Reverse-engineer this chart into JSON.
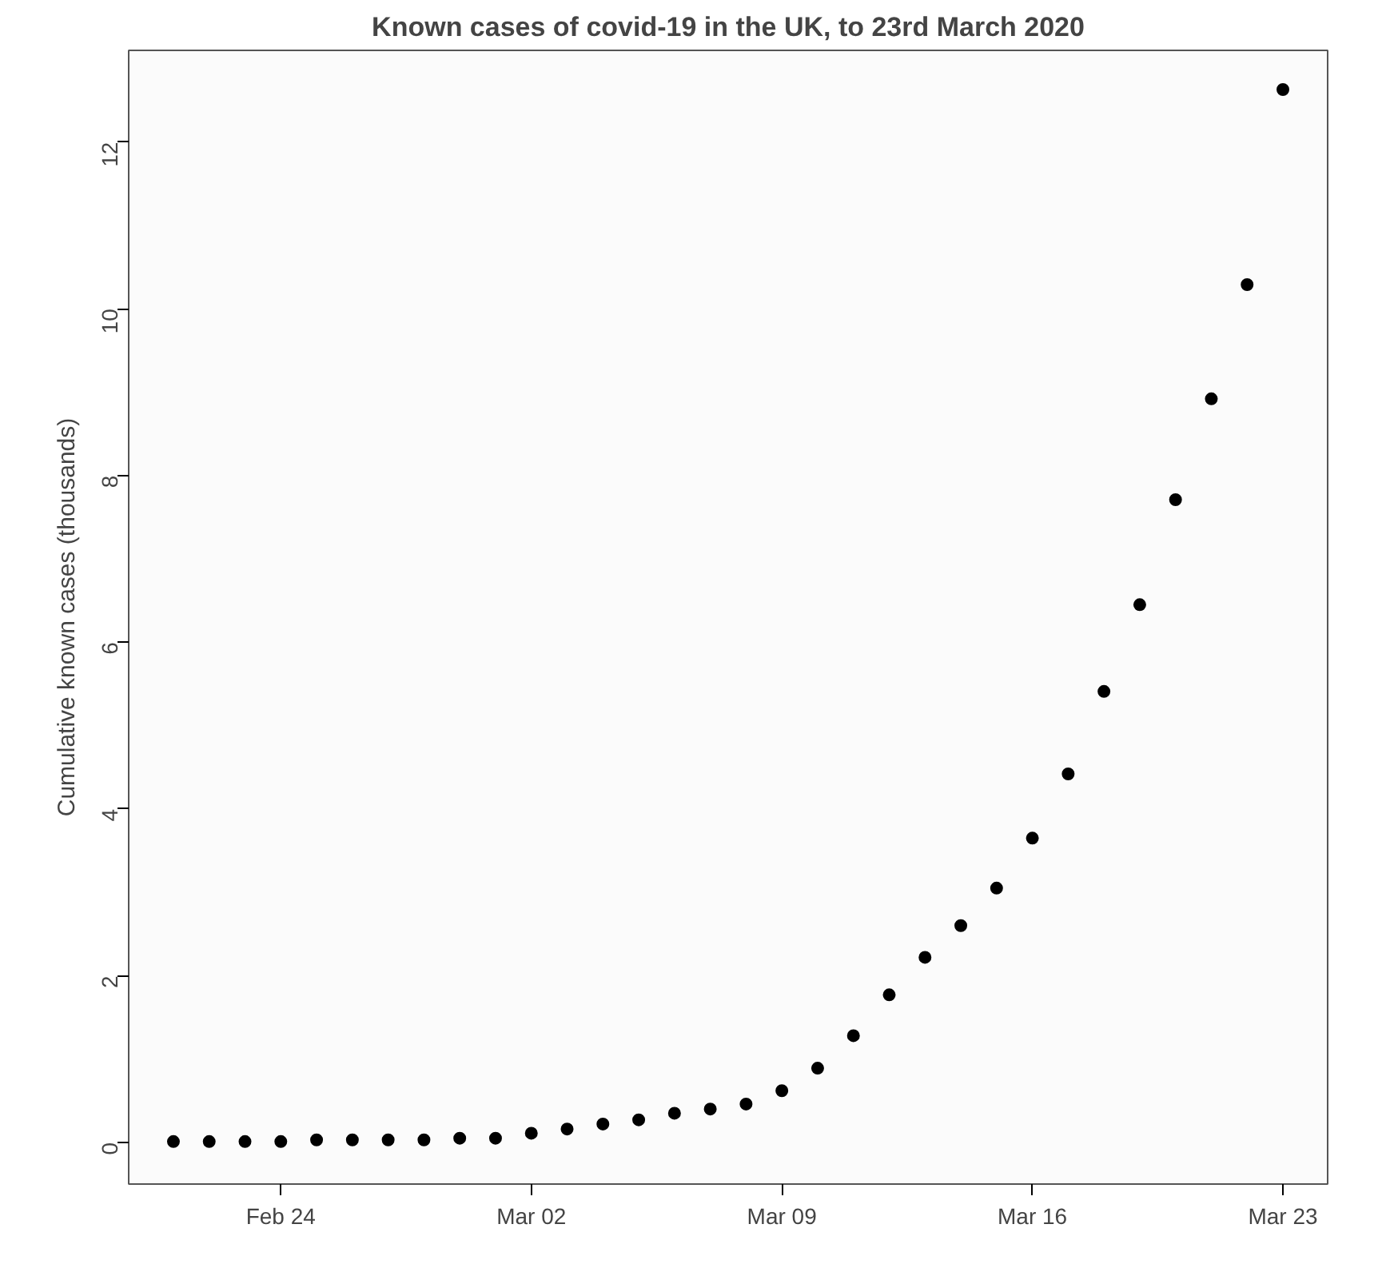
{
  "chart_data": {
    "type": "scatter",
    "title": "Known cases of covid-19 in the UK, to 23rd March 2020",
    "ylabel": "Cumulative known cases (thousands)",
    "x": [
      "2020-02-21",
      "2020-02-22",
      "2020-02-23",
      "2020-02-24",
      "2020-02-25",
      "2020-02-26",
      "2020-02-27",
      "2020-02-28",
      "2020-02-29",
      "2020-03-01",
      "2020-03-02",
      "2020-03-03",
      "2020-03-04",
      "2020-03-05",
      "2020-03-06",
      "2020-03-07",
      "2020-03-08",
      "2020-03-09",
      "2020-03-10",
      "2020-03-11",
      "2020-03-12",
      "2020-03-13",
      "2020-03-14",
      "2020-03-15",
      "2020-03-16",
      "2020-03-17",
      "2020-03-18",
      "2020-03-19",
      "2020-03-20",
      "2020-03-21",
      "2020-03-22",
      "2020-03-23"
    ],
    "series": [
      {
        "color": "#000000",
        "values": [
          0.01,
          0.01,
          0.01,
          0.01,
          0.03,
          0.03,
          0.03,
          0.03,
          0.05,
          0.05,
          0.11,
          0.16,
          0.22,
          0.27,
          0.35,
          0.4,
          0.46,
          0.62,
          0.89,
          1.28,
          1.77,
          2.22,
          2.6,
          3.05,
          3.65,
          4.42,
          5.41,
          6.45,
          7.71,
          8.92,
          10.29,
          12.63
        ]
      }
    ],
    "marker": "circle",
    "xlim": [
      "2020-02-19T18:00",
      "2020-03-24T06:00"
    ],
    "xticks": [
      {
        "value": "2020-02-24",
        "label": "Feb 24"
      },
      {
        "value": "2020-03-02",
        "label": "Mar 02"
      },
      {
        "value": "2020-03-09",
        "label": "Mar 09"
      },
      {
        "value": "2020-03-16",
        "label": "Mar 16"
      },
      {
        "value": "2020-03-23",
        "label": "Mar 23"
      }
    ],
    "ylim": [
      -0.5,
      13.1
    ],
    "yticks": [
      0,
      2,
      4,
      6,
      8,
      10,
      12
    ]
  }
}
